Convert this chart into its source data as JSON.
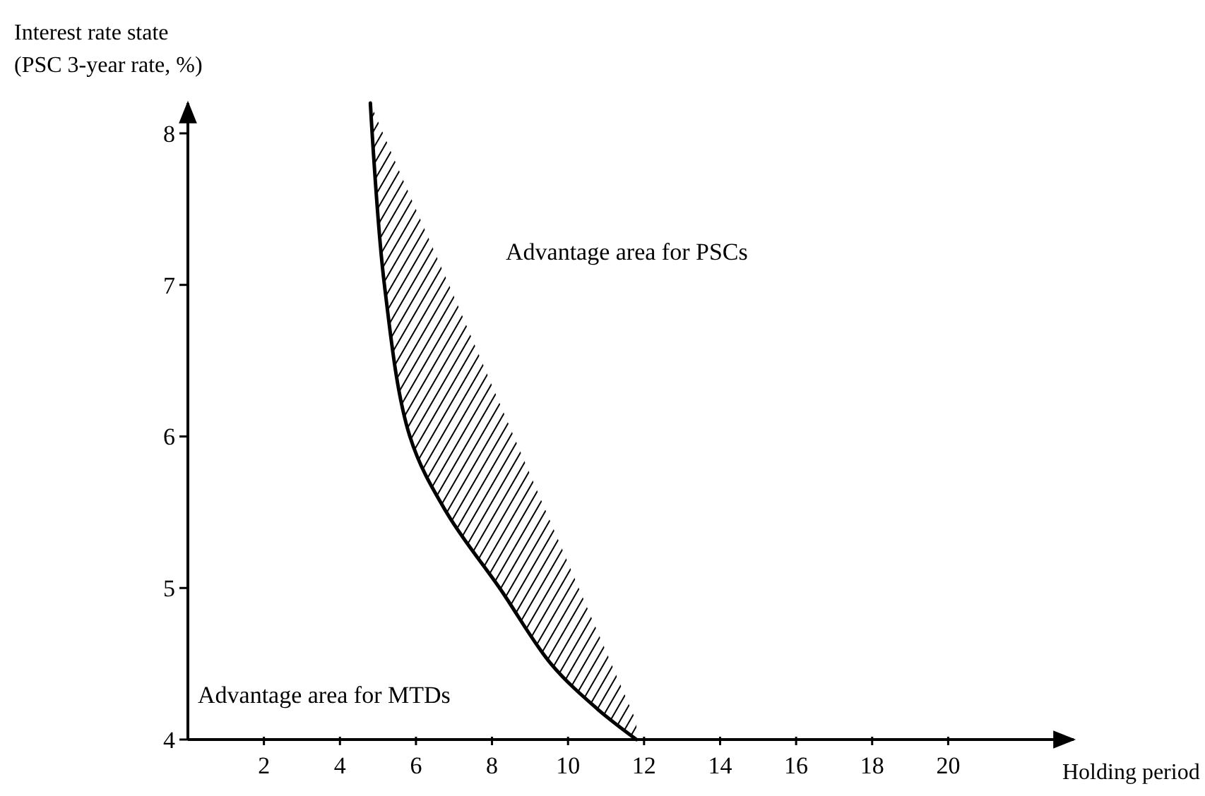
{
  "chart_data": {
    "type": "line",
    "ylabel": "Interest rate state\n(PSC 3-year rate, %)",
    "xlabel": "Holding period",
    "xlim": [
      0,
      23.3
    ],
    "ylim": [
      4,
      8.2
    ],
    "xticks": [
      2,
      4,
      6,
      8,
      10,
      12,
      14,
      16,
      18,
      20
    ],
    "yticks": [
      4,
      5,
      6,
      7,
      8
    ],
    "grid": false,
    "marker": "none",
    "line_style": "solid",
    "series": [
      {
        "color": "#000000",
        "x": [
          4.8,
          5.17,
          5.84,
          6.8,
          8.2,
          9.55,
          10.78,
          11.8
        ],
        "values": [
          8.2,
          7,
          6,
          5.5,
          5,
          4.5,
          4.2,
          4.0
        ],
        "lower": [
          8.2,
          7,
          6,
          5.5,
          5,
          4.5,
          4.2,
          4.0
        ],
        "upper": [
          8.2,
          7.98,
          7.59,
          7.04,
          6.22,
          5.43,
          4.71,
          4.12
        ]
      }
    ],
    "annotations": [
      "Advantage area for PSCs",
      "Advantage area for MTDs"
    ]
  }
}
